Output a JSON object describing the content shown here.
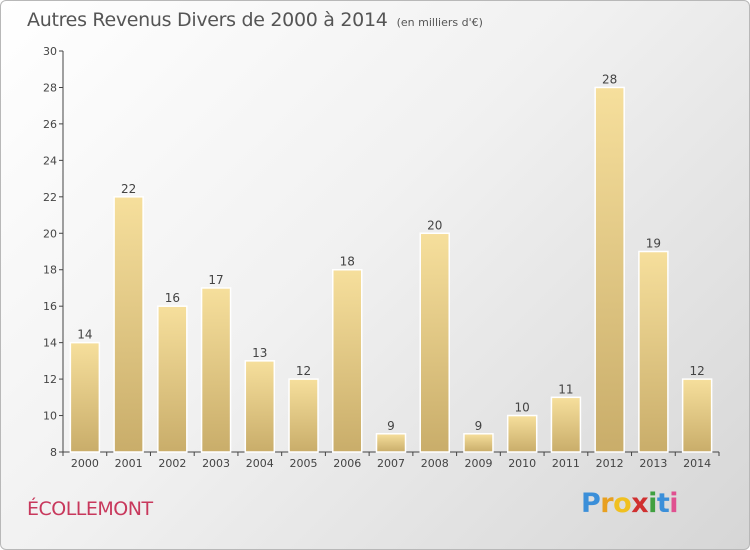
{
  "title": "Autres Revenus Divers de 2000 à 2014",
  "subtitle": "(en milliers d'€)",
  "commune": "ÉCOLLEMONT",
  "brand": {
    "letters": [
      "P",
      "r",
      "o",
      "x",
      "i",
      "t",
      "i"
    ],
    "colors": [
      "#3b8fd9",
      "#e8a020",
      "#f0c020",
      "#d03030",
      "#40a040",
      "#3b8fd9",
      "#e05090"
    ]
  },
  "colors": {
    "bar_light": "#f6df9c",
    "bar_dark": "#c9ad6a",
    "axis": "#444444",
    "title": "#555555",
    "commune": "#c8385c"
  },
  "chart_data": {
    "type": "bar",
    "title": "Autres Revenus Divers de 2000 à 2014",
    "subtitle": "(en milliers d'€)",
    "categories": [
      "2000",
      "2001",
      "2002",
      "2003",
      "2004",
      "2005",
      "2006",
      "2007",
      "2008",
      "2009",
      "2010",
      "2011",
      "2012",
      "2013",
      "2014"
    ],
    "values": [
      14,
      22,
      16,
      17,
      13,
      12,
      18,
      9,
      20,
      9,
      10,
      11,
      28,
      19,
      12
    ],
    "ylim": [
      8,
      30
    ],
    "yticks": [
      8,
      10,
      12,
      14,
      16,
      18,
      20,
      22,
      24,
      26,
      28,
      30
    ],
    "grid": false,
    "legend": "none"
  }
}
